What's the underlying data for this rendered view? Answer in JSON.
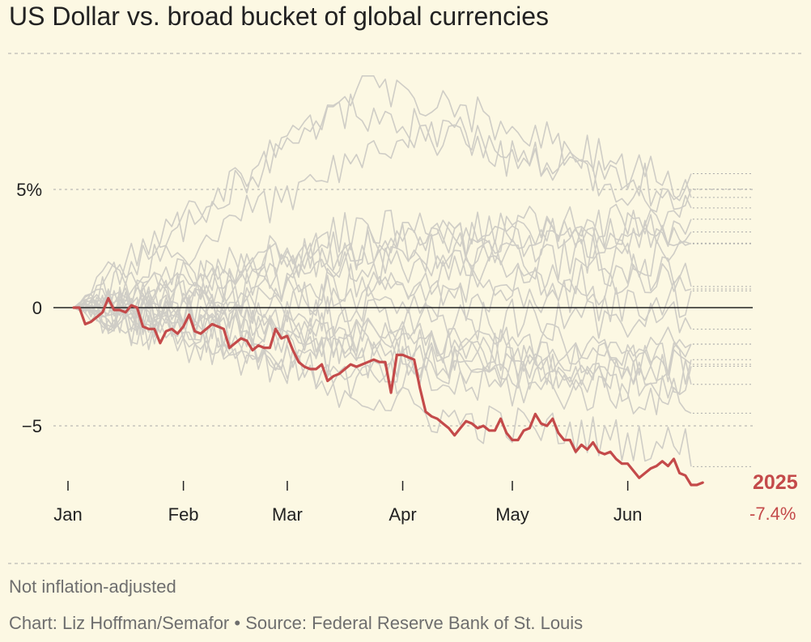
{
  "title": "US Dollar vs. broad bucket of global currencies",
  "notes": {
    "inflation": "Not inflation-adjusted",
    "credit": "Chart: Liz Hoffman/Semafor • Source: Federal Reserve Bank of St. Louis"
  },
  "highlight": {
    "year": "2025",
    "change": "-7.4%",
    "color": "#c44a4a"
  },
  "colors": {
    "background": "#fcf8e3",
    "other_years": "#cfcdc6",
    "zero_line": "#222222",
    "grid": "#aaaaaa"
  },
  "chart_data": {
    "type": "line",
    "title": "US Dollar vs. broad bucket of global currencies",
    "xlabel": "",
    "ylabel": "",
    "x_unit": "trading day since Jan 1",
    "xlim": [
      0,
      126
    ],
    "ylim": [
      -7.5,
      10
    ],
    "y_ticks": [
      {
        "value": 5,
        "label": "5%"
      },
      {
        "value": 0,
        "label": "0"
      },
      {
        "value": -5,
        "label": "−5"
      }
    ],
    "x_ticks": [
      {
        "value": 0,
        "label": "Jan"
      },
      {
        "value": 20,
        "label": "Feb"
      },
      {
        "value": 38,
        "label": "Mar"
      },
      {
        "value": 58,
        "label": "Apr"
      },
      {
        "value": 77,
        "label": "May"
      },
      {
        "value": 97,
        "label": "Jun"
      }
    ],
    "highlight_series": {
      "name": "2025",
      "points": [
        [
          0,
          0
        ],
        [
          1,
          0
        ],
        [
          2,
          -0.7
        ],
        [
          3,
          -0.6
        ],
        [
          4,
          -0.4
        ],
        [
          5,
          -0.2
        ],
        [
          6,
          0.4
        ],
        [
          7,
          -0.1
        ],
        [
          8,
          -0.1
        ],
        [
          9,
          -0.2
        ],
        [
          10,
          0.1
        ],
        [
          11,
          0
        ],
        [
          12,
          -0.8
        ],
        [
          13,
          -0.9
        ],
        [
          14,
          -0.9
        ],
        [
          15,
          -1.5
        ],
        [
          16,
          -1
        ],
        [
          17,
          -0.9
        ],
        [
          18,
          -1.1
        ],
        [
          19,
          -0.8
        ],
        [
          20,
          -0.3
        ],
        [
          21,
          -1
        ],
        [
          22,
          -1.1
        ],
        [
          23,
          -0.9
        ],
        [
          24,
          -0.7
        ],
        [
          25,
          -0.8
        ],
        [
          26,
          -0.9
        ],
        [
          27,
          -1.7
        ],
        [
          28,
          -1.5
        ],
        [
          29,
          -1.3
        ],
        [
          30,
          -1.4
        ],
        [
          31,
          -1.8
        ],
        [
          32,
          -1.6
        ],
        [
          33,
          -1.7
        ],
        [
          34,
          -1.7
        ],
        [
          35,
          -0.9
        ],
        [
          36,
          -1.3
        ],
        [
          37,
          -1.2
        ],
        [
          38,
          -1.8
        ],
        [
          39,
          -2.3
        ],
        [
          40,
          -2.5
        ],
        [
          41,
          -2.6
        ],
        [
          42,
          -2.6
        ],
        [
          43,
          -2.4
        ],
        [
          44,
          -3.1
        ],
        [
          45,
          -2.9
        ],
        [
          46,
          -2.8
        ],
        [
          47,
          -2.6
        ],
        [
          48,
          -2.4
        ],
        [
          49,
          -2.5
        ],
        [
          50,
          -2.4
        ],
        [
          51,
          -2.3
        ],
        [
          52,
          -2.2
        ],
        [
          53,
          -2.3
        ],
        [
          54,
          -2.3
        ],
        [
          55,
          -3.6
        ],
        [
          56,
          -2
        ],
        [
          57,
          -2
        ],
        [
          58,
          -2.1
        ],
        [
          59,
          -2.2
        ],
        [
          60,
          -3.4
        ],
        [
          61,
          -4.4
        ],
        [
          62,
          -4.6
        ],
        [
          63,
          -4.7
        ],
        [
          64,
          -4.9
        ],
        [
          65,
          -5.1
        ],
        [
          66,
          -5.4
        ],
        [
          67,
          -5.1
        ],
        [
          68,
          -4.8
        ],
        [
          69,
          -4.9
        ],
        [
          70,
          -5.1
        ],
        [
          71,
          -5
        ],
        [
          72,
          -5.2
        ],
        [
          73,
          -5.2
        ],
        [
          74,
          -4.7
        ],
        [
          75,
          -5.3
        ],
        [
          76,
          -5.6
        ],
        [
          77,
          -5.6
        ],
        [
          78,
          -5.2
        ],
        [
          79,
          -5.1
        ],
        [
          80,
          -4.5
        ],
        [
          81,
          -4.9
        ],
        [
          82,
          -5
        ],
        [
          83,
          -4.7
        ],
        [
          84,
          -5.3
        ],
        [
          85,
          -5.6
        ],
        [
          86,
          -5.6
        ],
        [
          87,
          -6.1
        ],
        [
          88,
          -5.8
        ],
        [
          89,
          -6
        ],
        [
          90,
          -5.7
        ],
        [
          91,
          -6.1
        ],
        [
          92,
          -6.2
        ],
        [
          93,
          -6.1
        ],
        [
          94,
          -6.4
        ],
        [
          95,
          -6.6
        ],
        [
          96,
          -6.6
        ],
        [
          97,
          -6.9
        ],
        [
          98,
          -7.2
        ],
        [
          99,
          -7
        ],
        [
          100,
          -6.8
        ],
        [
          101,
          -6.7
        ],
        [
          102,
          -6.5
        ],
        [
          103,
          -6.7
        ],
        [
          104,
          -6.4
        ],
        [
          105,
          -7
        ],
        [
          106,
          -7.1
        ],
        [
          107,
          -7.5
        ],
        [
          108,
          -7.5
        ],
        [
          109,
          -7.4
        ]
      ]
    },
    "background_series_count": 20
  }
}
